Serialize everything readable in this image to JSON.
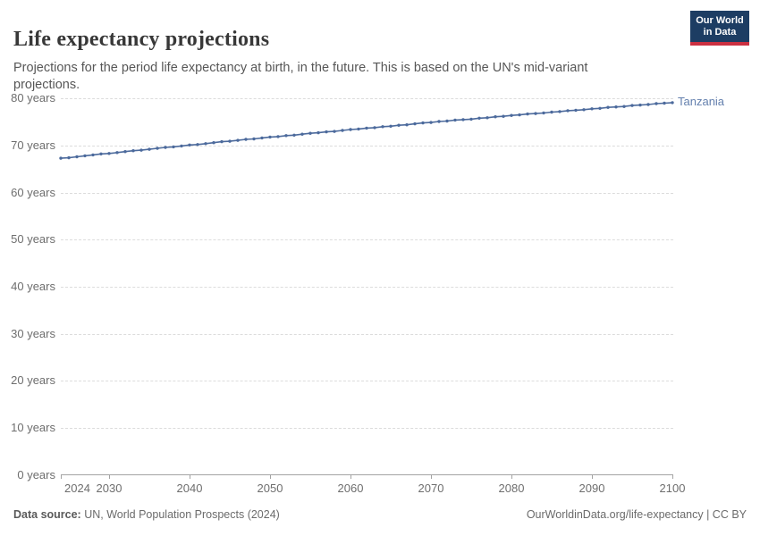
{
  "header": {
    "title": "Life expectancy projections",
    "subtitle": "Projections for the period life expectancy at birth, in the future. This is based on the UN's mid-variant projections.",
    "logo": {
      "line1": "Our World",
      "line2": "in Data"
    }
  },
  "chart_data": {
    "type": "line",
    "title": "Life expectancy projections",
    "entity": "Tanzania",
    "unit": "years",
    "xlabel": "",
    "ylabel": "",
    "xlim": [
      2024,
      2100
    ],
    "ylim": [
      0,
      80
    ],
    "grid": "horizontal dashed gridlines on",
    "legend": "end-of-line entity label",
    "xticks": [
      2024,
      2030,
      2040,
      2050,
      2060,
      2070,
      2080,
      2090,
      2100
    ],
    "yticks": [
      {
        "value": 0,
        "label": "0 years"
      },
      {
        "value": 10,
        "label": "10 years"
      },
      {
        "value": 20,
        "label": "20 years"
      },
      {
        "value": 30,
        "label": "30 years"
      },
      {
        "value": 40,
        "label": "40 years"
      },
      {
        "value": 50,
        "label": "50 years"
      },
      {
        "value": 60,
        "label": "60 years"
      },
      {
        "value": 70,
        "label": "70 years"
      },
      {
        "value": 80,
        "label": "80 years"
      }
    ],
    "x": [
      2024,
      2025,
      2026,
      2027,
      2028,
      2029,
      2030,
      2031,
      2032,
      2033,
      2034,
      2035,
      2036,
      2037,
      2038,
      2039,
      2040,
      2041,
      2042,
      2043,
      2044,
      2045,
      2046,
      2047,
      2048,
      2049,
      2050,
      2051,
      2052,
      2053,
      2054,
      2055,
      2056,
      2057,
      2058,
      2059,
      2060,
      2061,
      2062,
      2063,
      2064,
      2065,
      2066,
      2067,
      2068,
      2069,
      2070,
      2071,
      2072,
      2073,
      2074,
      2075,
      2076,
      2077,
      2078,
      2079,
      2080,
      2081,
      2082,
      2083,
      2084,
      2085,
      2086,
      2087,
      2088,
      2089,
      2090,
      2091,
      2092,
      2093,
      2094,
      2095,
      2096,
      2097,
      2098,
      2099,
      2100
    ],
    "series": [
      {
        "name": "Tanzania",
        "values": [
          67.3,
          67.4,
          67.6,
          67.8,
          68.0,
          68.2,
          68.3,
          68.5,
          68.7,
          68.9,
          69.0,
          69.2,
          69.4,
          69.6,
          69.7,
          69.9,
          70.1,
          70.2,
          70.4,
          70.6,
          70.8,
          70.9,
          71.1,
          71.3,
          71.4,
          71.6,
          71.8,
          71.9,
          72.1,
          72.2,
          72.4,
          72.6,
          72.7,
          72.9,
          73.0,
          73.2,
          73.4,
          73.5,
          73.7,
          73.8,
          74.0,
          74.1,
          74.3,
          74.4,
          74.6,
          74.8,
          74.9,
          75.1,
          75.2,
          75.4,
          75.5,
          75.6,
          75.8,
          75.9,
          76.1,
          76.2,
          76.4,
          76.5,
          76.7,
          76.8,
          76.9,
          77.1,
          77.2,
          77.4,
          77.5,
          77.6,
          77.8,
          77.9,
          78.1,
          78.2,
          78.3,
          78.5,
          78.6,
          78.7,
          78.9,
          79.0,
          79.1
        ]
      }
    ]
  },
  "colors": {
    "line": "#4c6a9c",
    "point": "#4c6a9c",
    "series_label": "#6480ae",
    "grid": "#dcdcdc",
    "axis": "#a3a3a3",
    "logo_bg": "#1d3d63",
    "logo_red": "#cb3041"
  },
  "footer": {
    "source_label": "Data source:",
    "source_text": " UN, World Population Prospects (2024)",
    "link": "OurWorldinData.org/life-expectancy | CC BY"
  }
}
